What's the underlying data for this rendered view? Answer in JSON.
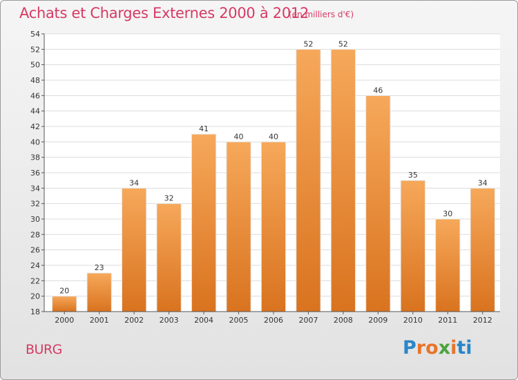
{
  "header": {
    "title": "Achats et Charges Externes 2000 à 2012",
    "subtitle": "(en milliers d'€)"
  },
  "footer": {
    "commune": "BURG",
    "brand_letters": [
      "P",
      "r",
      "o",
      "x",
      "i",
      "t",
      "i"
    ]
  },
  "colors": {
    "bar_top": "#f6a85a",
    "bar_bottom": "#d9731f",
    "title": "#d63a63"
  },
  "chart_data": {
    "type": "bar",
    "title": "Achats et Charges Externes 2000 à 2012",
    "subtitle": "(en milliers d'€)",
    "categories": [
      "2000",
      "2001",
      "2002",
      "2003",
      "2004",
      "2005",
      "2006",
      "2007",
      "2008",
      "2009",
      "2010",
      "2011",
      "2012"
    ],
    "values": [
      20,
      23,
      34,
      32,
      41,
      40,
      40,
      52,
      52,
      46,
      35,
      30,
      34
    ],
    "ylim": [
      18,
      54
    ],
    "yticks": [
      18,
      20,
      22,
      24,
      26,
      28,
      30,
      32,
      34,
      36,
      38,
      40,
      42,
      44,
      46,
      48,
      50,
      52,
      54
    ],
    "grid": true,
    "xlabel": "",
    "ylabel": ""
  }
}
